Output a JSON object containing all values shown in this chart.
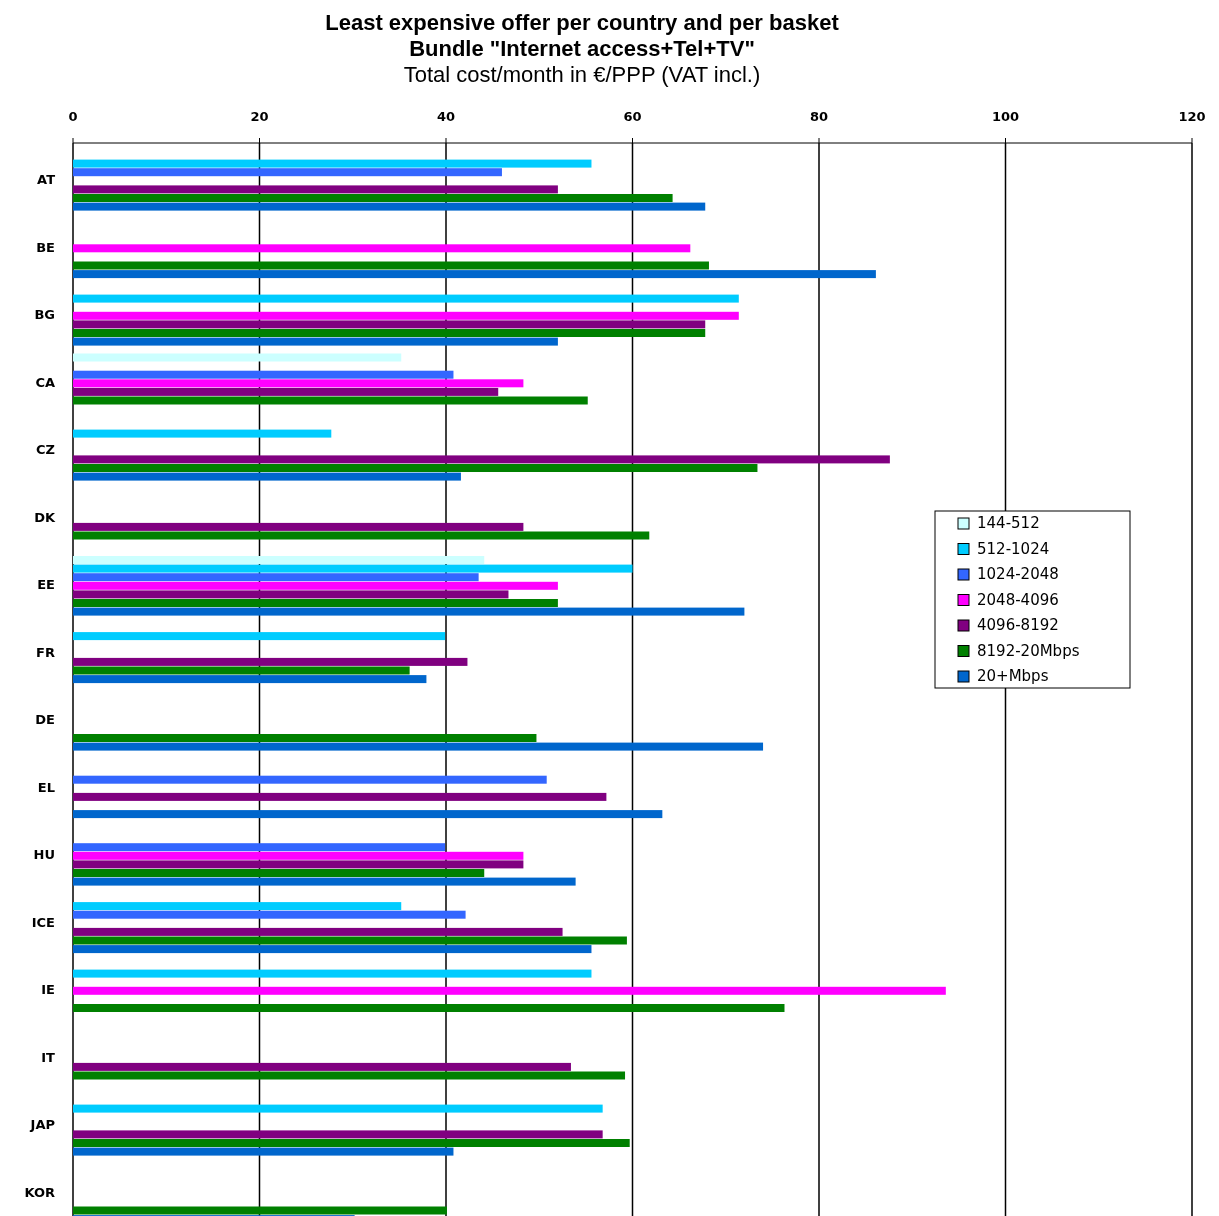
{
  "chart_data": {
    "type": "bar",
    "orientation": "horizontal",
    "title": "Least expensive offer per country and per basket\nBundle \"Internet access+Tel+TV\"",
    "subtitle": "Total cost/month in €/PPP (VAT incl.)",
    "categories": [
      "AT",
      "BE",
      "BG",
      "CA",
      "CZ",
      "DK",
      "EE",
      "FR",
      "DE",
      "EL",
      "HU",
      "ICE",
      "IE",
      "IT",
      "JAP",
      "KOR"
    ],
    "xlim": [
      0,
      120
    ],
    "xticks": [
      0,
      20,
      40,
      60,
      80,
      100,
      120
    ],
    "grid": "x",
    "legend": "right",
    "series": [
      {
        "name": "144-512",
        "color": "#ccffff",
        "values": [
          null,
          null,
          null,
          35.2,
          null,
          null,
          44.1,
          null,
          null,
          null,
          null,
          null,
          null,
          null,
          null,
          null
        ]
      },
      {
        "name": "512-1024",
        "color": "#00ccff",
        "values": [
          55.6,
          null,
          71.4,
          null,
          27.7,
          null,
          60.0,
          39.9,
          null,
          null,
          null,
          35.2,
          55.6,
          null,
          56.8,
          null
        ]
      },
      {
        "name": "1024-2048",
        "color": "#3366ff",
        "values": [
          46.0,
          null,
          null,
          40.8,
          null,
          null,
          43.5,
          null,
          null,
          50.8,
          39.9,
          42.1,
          null,
          null,
          null,
          null
        ]
      },
      {
        "name": "2048-4096",
        "color": "#ff00ff",
        "values": [
          null,
          66.2,
          71.4,
          48.3,
          null,
          null,
          52.0,
          null,
          null,
          null,
          48.3,
          null,
          93.6,
          null,
          null,
          null
        ]
      },
      {
        "name": "4096-8192",
        "color": "#800080",
        "values": [
          52.0,
          null,
          67.8,
          45.6,
          87.6,
          48.3,
          46.7,
          42.3,
          null,
          57.2,
          48.3,
          52.5,
          null,
          53.4,
          56.8,
          null
        ]
      },
      {
        "name": "8192-20Mbps",
        "color": "#008000",
        "values": [
          64.3,
          68.2,
          67.8,
          55.2,
          73.4,
          61.8,
          52.0,
          36.1,
          49.7,
          null,
          44.1,
          59.4,
          76.3,
          59.2,
          59.7,
          40.1
        ]
      },
      {
        "name": "20+Mbps",
        "color": "#0066cc",
        "values": [
          67.8,
          86.1,
          52.0,
          null,
          41.6,
          null,
          72.0,
          37.9,
          74.0,
          63.2,
          53.9,
          55.6,
          null,
          null,
          40.8,
          30.2
        ]
      }
    ]
  }
}
